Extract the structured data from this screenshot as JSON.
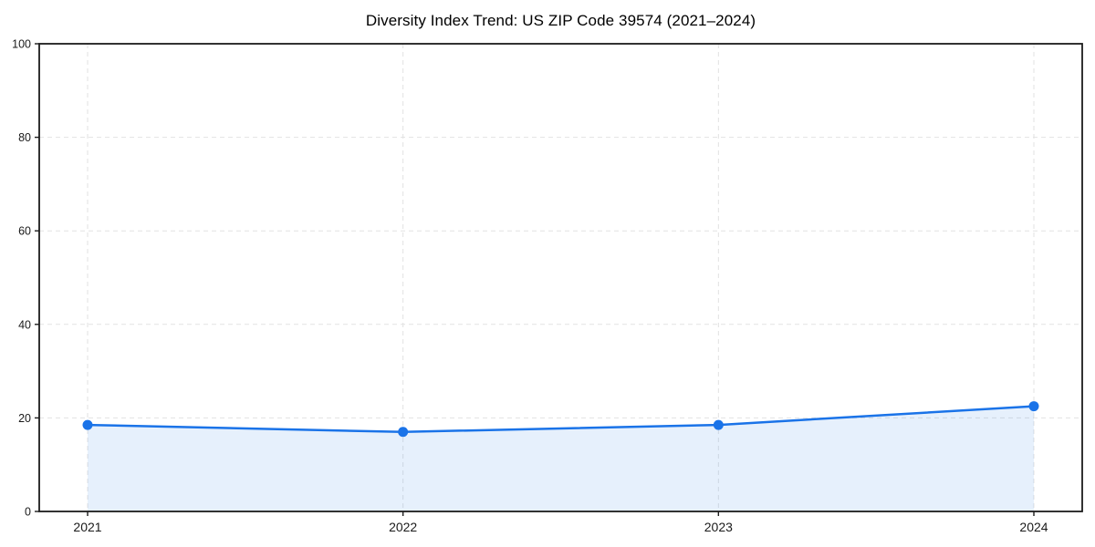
{
  "chart_data": {
    "type": "line",
    "title": "Diversity Index Trend: US ZIP Code 39574 (2021–2024)",
    "x": [
      2021,
      2022,
      2023,
      2024
    ],
    "x_tick_labels": [
      "2021",
      "2022",
      "2023",
      "2024"
    ],
    "y_ticks": [
      0,
      20,
      40,
      60,
      80,
      100
    ],
    "y_tick_labels": [
      "0",
      "20",
      "40",
      "60",
      "80",
      "100"
    ],
    "ylim": [
      0,
      100
    ],
    "series": [
      {
        "name": "Diversity Index",
        "values": [
          18.5,
          17.0,
          18.5,
          22.5
        ]
      }
    ],
    "area_fill": true,
    "grid": "dashed",
    "legend_position": "none",
    "xlabel": "",
    "ylabel": "",
    "colors": {
      "line": "#1a73e8",
      "marker": "#1a73e8",
      "area": "rgba(26,115,232,0.11)",
      "grid": "#e2e2e2",
      "spine": "#1c1c1c",
      "tick_label": "#1a1a1a",
      "title": "#000000"
    }
  }
}
